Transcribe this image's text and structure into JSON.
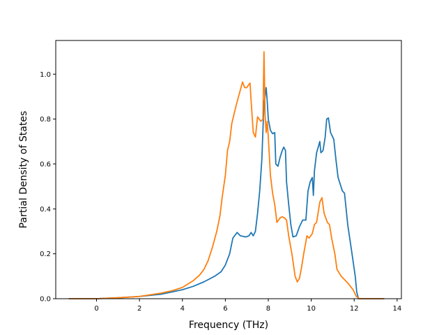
{
  "chart_data": {
    "type": "line",
    "title": "",
    "xlabel": "Frequency (THz)",
    "ylabel": "Partial Density of States",
    "xlim": [
      -1.9,
      14.2
    ],
    "ylim": [
      0.0,
      1.15
    ],
    "xticks": [
      0,
      2,
      4,
      6,
      8,
      10,
      12,
      14
    ],
    "yticks": [
      0.0,
      0.2,
      0.4,
      0.6,
      0.8,
      1.0
    ],
    "xtick_labels": [
      "0",
      "2",
      "4",
      "6",
      "8",
      "10",
      "12",
      "14"
    ],
    "ytick_labels": [
      "0.0",
      "0.2",
      "0.4",
      "0.6",
      "0.8",
      "1.0"
    ],
    "grid": false,
    "legend": "none",
    "series": [
      {
        "color": "#1f77b4",
        "points": [
          [
            -1.3,
            0.0
          ],
          [
            0.0,
            0.0
          ],
          [
            1.0,
            0.004
          ],
          [
            2.0,
            0.01
          ],
          [
            3.0,
            0.02
          ],
          [
            4.0,
            0.04
          ],
          [
            4.5,
            0.055
          ],
          [
            5.0,
            0.075
          ],
          [
            5.5,
            0.1
          ],
          [
            5.8,
            0.12
          ],
          [
            6.0,
            0.15
          ],
          [
            6.2,
            0.2
          ],
          [
            6.35,
            0.27
          ],
          [
            6.55,
            0.295
          ],
          [
            6.7,
            0.28
          ],
          [
            6.95,
            0.275
          ],
          [
            7.1,
            0.28
          ],
          [
            7.2,
            0.295
          ],
          [
            7.3,
            0.28
          ],
          [
            7.4,
            0.3
          ],
          [
            7.5,
            0.38
          ],
          [
            7.6,
            0.48
          ],
          [
            7.7,
            0.62
          ],
          [
            7.75,
            0.75
          ],
          [
            7.8,
            0.87
          ],
          [
            7.85,
            0.9
          ],
          [
            7.9,
            0.94
          ],
          [
            7.95,
            0.88
          ],
          [
            8.0,
            0.8
          ],
          [
            8.1,
            0.75
          ],
          [
            8.2,
            0.735
          ],
          [
            8.3,
            0.74
          ],
          [
            8.35,
            0.6
          ],
          [
            8.45,
            0.59
          ],
          [
            8.55,
            0.63
          ],
          [
            8.65,
            0.66
          ],
          [
            8.72,
            0.675
          ],
          [
            8.8,
            0.66
          ],
          [
            8.85,
            0.52
          ],
          [
            8.95,
            0.42
          ],
          [
            9.05,
            0.33
          ],
          [
            9.15,
            0.275
          ],
          [
            9.3,
            0.28
          ],
          [
            9.45,
            0.32
          ],
          [
            9.6,
            0.35
          ],
          [
            9.75,
            0.35
          ],
          [
            9.85,
            0.48
          ],
          [
            9.95,
            0.52
          ],
          [
            10.05,
            0.54
          ],
          [
            10.1,
            0.46
          ],
          [
            10.15,
            0.57
          ],
          [
            10.25,
            0.65
          ],
          [
            10.4,
            0.7
          ],
          [
            10.45,
            0.65
          ],
          [
            10.55,
            0.66
          ],
          [
            10.65,
            0.72
          ],
          [
            10.72,
            0.8
          ],
          [
            10.8,
            0.805
          ],
          [
            10.9,
            0.74
          ],
          [
            11.05,
            0.71
          ],
          [
            11.15,
            0.62
          ],
          [
            11.25,
            0.54
          ],
          [
            11.45,
            0.48
          ],
          [
            11.55,
            0.47
          ],
          [
            11.7,
            0.33
          ],
          [
            11.9,
            0.2
          ],
          [
            12.05,
            0.1
          ],
          [
            12.12,
            0.03
          ],
          [
            12.2,
            0.0
          ],
          [
            13.4,
            0.0
          ]
        ]
      },
      {
        "color": "#ff7f0e",
        "points": [
          [
            -1.3,
            0.0
          ],
          [
            0.0,
            0.0
          ],
          [
            1.0,
            0.004
          ],
          [
            2.0,
            0.01
          ],
          [
            3.0,
            0.025
          ],
          [
            3.5,
            0.035
          ],
          [
            4.0,
            0.05
          ],
          [
            4.5,
            0.08
          ],
          [
            4.8,
            0.105
          ],
          [
            5.0,
            0.13
          ],
          [
            5.2,
            0.17
          ],
          [
            5.4,
            0.23
          ],
          [
            5.6,
            0.3
          ],
          [
            5.75,
            0.37
          ],
          [
            5.85,
            0.45
          ],
          [
            6.0,
            0.55
          ],
          [
            6.1,
            0.66
          ],
          [
            6.2,
            0.7
          ],
          [
            6.3,
            0.78
          ],
          [
            6.5,
            0.86
          ],
          [
            6.7,
            0.93
          ],
          [
            6.8,
            0.965
          ],
          [
            6.9,
            0.94
          ],
          [
            7.0,
            0.94
          ],
          [
            7.1,
            0.955
          ],
          [
            7.15,
            0.96
          ],
          [
            7.2,
            0.88
          ],
          [
            7.3,
            0.74
          ],
          [
            7.4,
            0.72
          ],
          [
            7.5,
            0.81
          ],
          [
            7.65,
            0.79
          ],
          [
            7.75,
            0.8
          ],
          [
            7.8,
            1.1
          ],
          [
            7.85,
            0.82
          ],
          [
            7.9,
            0.74
          ],
          [
            7.95,
            0.79
          ],
          [
            8.0,
            0.72
          ],
          [
            8.1,
            0.55
          ],
          [
            8.2,
            0.47
          ],
          [
            8.3,
            0.42
          ],
          [
            8.4,
            0.34
          ],
          [
            8.55,
            0.36
          ],
          [
            8.65,
            0.365
          ],
          [
            8.75,
            0.36
          ],
          [
            8.85,
            0.35
          ],
          [
            8.95,
            0.28
          ],
          [
            9.1,
            0.2
          ],
          [
            9.25,
            0.1
          ],
          [
            9.35,
            0.075
          ],
          [
            9.45,
            0.09
          ],
          [
            9.55,
            0.14
          ],
          [
            9.65,
            0.2
          ],
          [
            9.8,
            0.28
          ],
          [
            9.9,
            0.27
          ],
          [
            10.05,
            0.29
          ],
          [
            10.15,
            0.33
          ],
          [
            10.25,
            0.34
          ],
          [
            10.4,
            0.43
          ],
          [
            10.5,
            0.45
          ],
          [
            10.6,
            0.38
          ],
          [
            10.75,
            0.34
          ],
          [
            10.85,
            0.33
          ],
          [
            10.95,
            0.27
          ],
          [
            11.1,
            0.2
          ],
          [
            11.2,
            0.13
          ],
          [
            11.4,
            0.1
          ],
          [
            11.7,
            0.07
          ],
          [
            11.95,
            0.04
          ],
          [
            12.1,
            0.01
          ],
          [
            12.25,
            0.0
          ],
          [
            13.4,
            0.0
          ]
        ]
      }
    ]
  }
}
